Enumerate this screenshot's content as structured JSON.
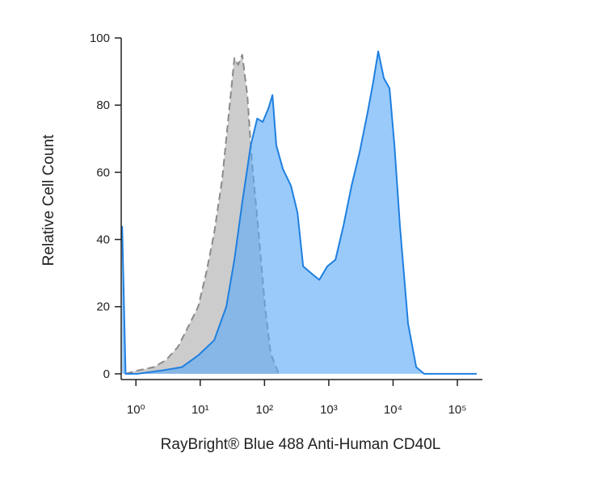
{
  "chart_data": {
    "type": "area",
    "xlabel": "RayBright® Blue 488 Anti-Human CD40L",
    "ylabel": "Relative Cell Count",
    "xscale": "log",
    "xlim": [
      0.59,
      245000
    ],
    "ylim": [
      -1.7,
      100
    ],
    "xticks": [
      {
        "value": 1,
        "label": "10⁰"
      },
      {
        "value": 10,
        "label": "10¹"
      },
      {
        "value": 100,
        "label": "10²"
      },
      {
        "value": 1000,
        "label": "10³"
      },
      {
        "value": 10000,
        "label": "10⁴"
      },
      {
        "value": 100000,
        "label": "10⁵"
      }
    ],
    "yticks": [
      0,
      20,
      40,
      60,
      80,
      100
    ],
    "series": [
      {
        "color": "#8a8a8a",
        "fill": "#c9c9c9",
        "line_style": "dashed",
        "x": [
          0.69,
          1.06,
          1.89,
          2.9,
          4.5,
          6.9,
          9.3,
          12.4,
          16.5,
          22,
          28,
          34,
          39,
          45,
          54,
          64,
          81,
          102,
          125,
          167
        ],
        "values": [
          0,
          1,
          2,
          4,
          8,
          15,
          20,
          30,
          42,
          58,
          78,
          94,
          92,
          95,
          83,
          63,
          42,
          20,
          6,
          0
        ]
      },
      {
        "color": "#1f7fe0",
        "fill": "#5aa9f7",
        "line_style": "solid",
        "x": [
          0.61,
          0.69,
          1.06,
          2.5,
          5.2,
          9.3,
          16.5,
          25.5,
          34,
          45,
          61,
          77,
          94,
          115,
          133,
          153,
          193,
          258,
          326,
          399,
          532,
          711,
          949,
          1270,
          1690,
          2260,
          3020,
          4030,
          4930,
          5870,
          7190,
          8810,
          10500,
          12800,
          17100,
          22900,
          30500,
          200000
        ],
        "values": [
          44,
          0,
          0,
          1,
          2,
          5.5,
          10,
          20,
          34,
          51,
          68,
          76,
          75,
          79,
          83,
          68,
          61,
          56,
          48,
          32,
          30,
          28,
          32,
          34,
          44,
          56,
          66,
          78,
          87,
          96,
          88,
          85,
          68,
          44,
          15,
          2,
          0,
          0
        ]
      }
    ]
  }
}
